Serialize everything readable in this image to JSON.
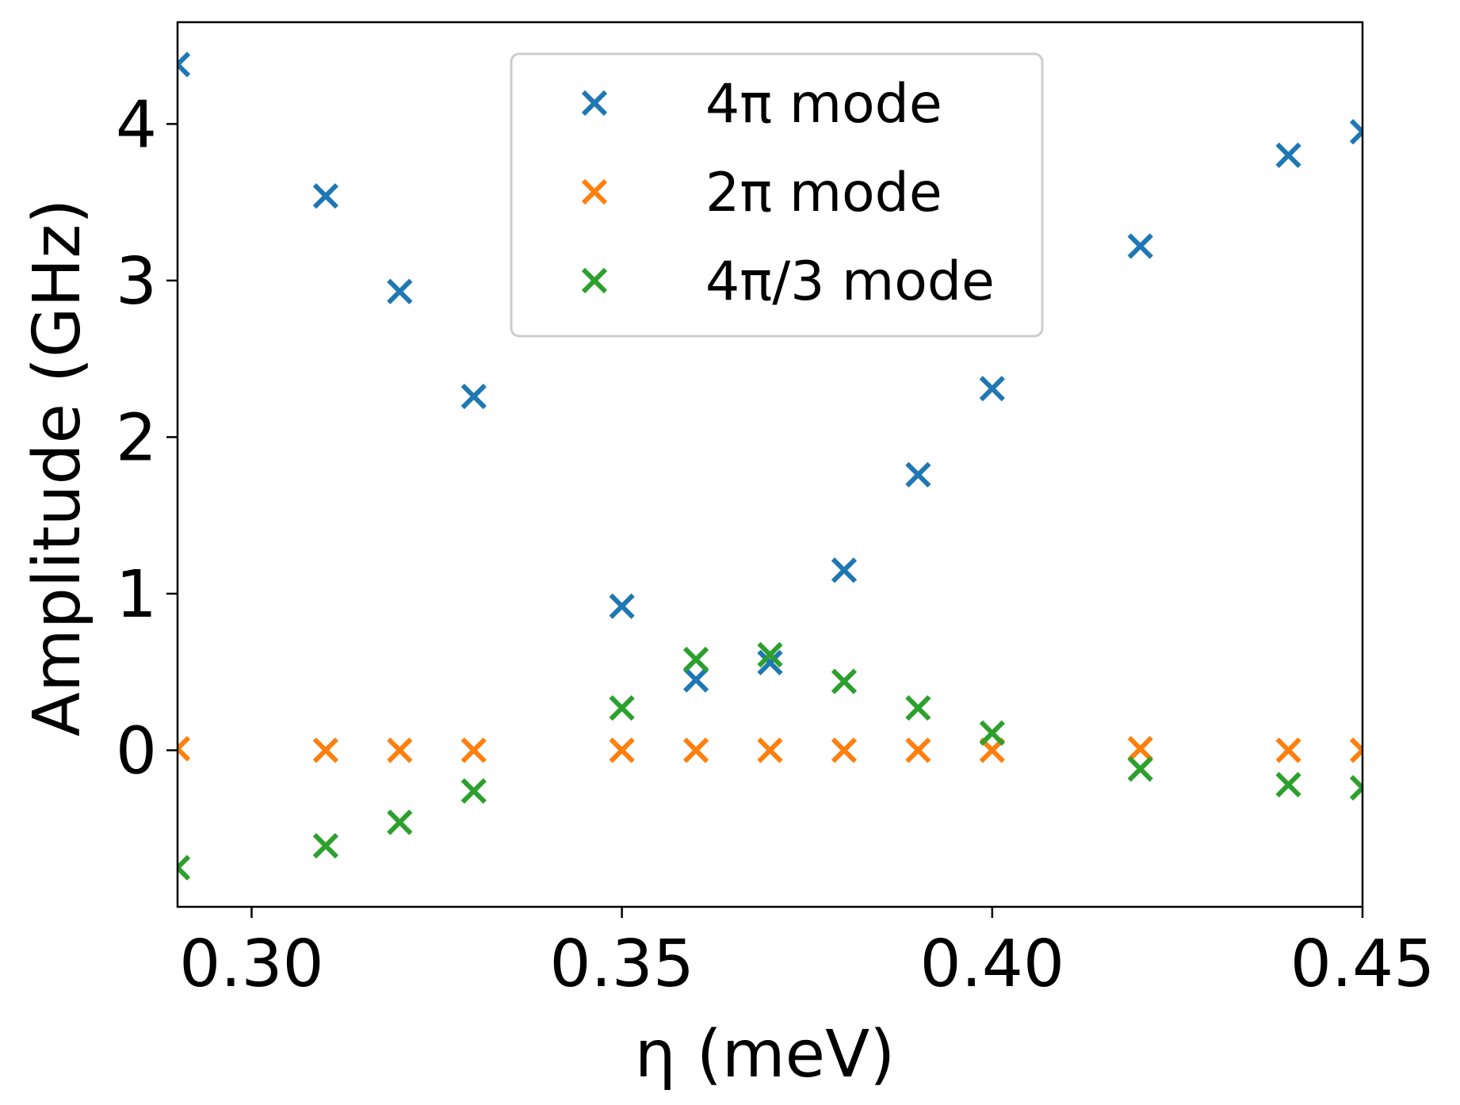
{
  "chart_data": {
    "type": "scatter",
    "title": "",
    "xlabel": "η (meV)",
    "ylabel": "Amplitude (GHz)",
    "xlim": [
      0.29,
      0.45
    ],
    "ylim": [
      -1.0,
      4.65
    ],
    "xticks": [
      0.3,
      0.35,
      0.4,
      0.45
    ],
    "xtick_labels": [
      "0.30",
      "0.35",
      "0.40",
      "0.45"
    ],
    "yticks": [
      0,
      1,
      2,
      3,
      4
    ],
    "ytick_labels": [
      "0",
      "1",
      "2",
      "3",
      "4"
    ],
    "grid": false,
    "legend_position": "upper-center",
    "marker": "x",
    "series": [
      {
        "name": "4π mode",
        "color": "#1f77b4",
        "x": [
          0.29,
          0.31,
          0.32,
          0.33,
          0.35,
          0.36,
          0.37,
          0.38,
          0.39,
          0.4,
          0.42,
          0.44,
          0.45
        ],
        "y": [
          4.38,
          3.54,
          2.93,
          2.26,
          0.92,
          0.45,
          0.56,
          1.15,
          1.76,
          2.31,
          3.22,
          3.8,
          3.95
        ]
      },
      {
        "name": "2π mode",
        "color": "#ff7f0e",
        "x": [
          0.29,
          0.31,
          0.32,
          0.33,
          0.35,
          0.36,
          0.37,
          0.38,
          0.39,
          0.4,
          0.42,
          0.44,
          0.45
        ],
        "y": [
          0.01,
          0.0,
          0.0,
          0.0,
          0.0,
          0.0,
          0.0,
          0.0,
          0.0,
          0.0,
          0.01,
          0.0,
          0.0
        ]
      },
      {
        "name": "4π/3 mode",
        "color": "#2ca02c",
        "x": [
          0.29,
          0.31,
          0.32,
          0.33,
          0.35,
          0.36,
          0.37,
          0.38,
          0.39,
          0.4,
          0.42,
          0.44,
          0.45
        ],
        "y": [
          -0.75,
          -0.61,
          -0.46,
          -0.26,
          0.27,
          0.58,
          0.61,
          0.44,
          0.27,
          0.11,
          -0.12,
          -0.22,
          -0.24
        ]
      }
    ]
  }
}
